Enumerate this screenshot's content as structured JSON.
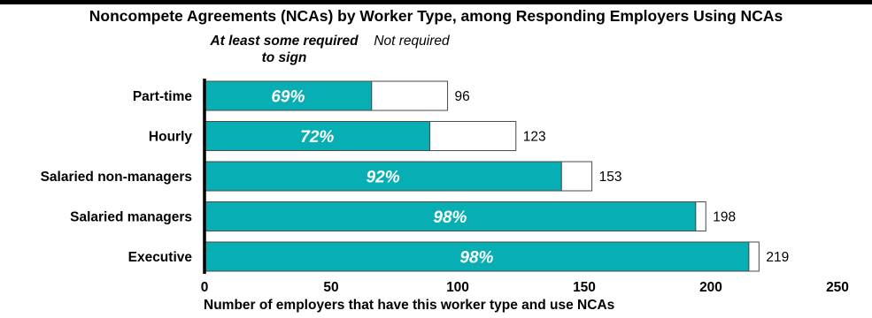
{
  "chart_data": {
    "type": "bar",
    "orientation": "horizontal",
    "stacked": true,
    "title": "Noncompete Agreements (NCAs) by Worker Type, among Responding Employers Using NCAs",
    "xlabel": "Number of employers that have this worker type and use NCAs",
    "ylabel": "",
    "xlim": [
      0,
      250
    ],
    "xticks": [
      0,
      50,
      100,
      150,
      200,
      250
    ],
    "grid": false,
    "legend": {
      "placement": "top",
      "entries": [
        {
          "name": "At least some required to sign",
          "color": "#07aeb3"
        },
        {
          "name": "Not required",
          "color": "#ffffff"
        }
      ]
    },
    "categories": [
      "Part-time",
      "Hourly",
      "Salaried non-managers",
      "Salaried managers",
      "Executive"
    ],
    "totals": [
      96,
      123,
      153,
      198,
      219
    ],
    "percent_required": [
      "69%",
      "72%",
      "92%",
      "98%",
      "98%"
    ],
    "series": [
      {
        "name": "At least some required to sign",
        "values": [
          66,
          89,
          141,
          194,
          215
        ]
      },
      {
        "name": "Not required",
        "values": [
          30,
          34,
          12,
          4,
          4
        ]
      }
    ]
  },
  "colors": {
    "required": "#07aeb3",
    "not_required": "#ffffff",
    "outline": "#4a4a4a"
  }
}
